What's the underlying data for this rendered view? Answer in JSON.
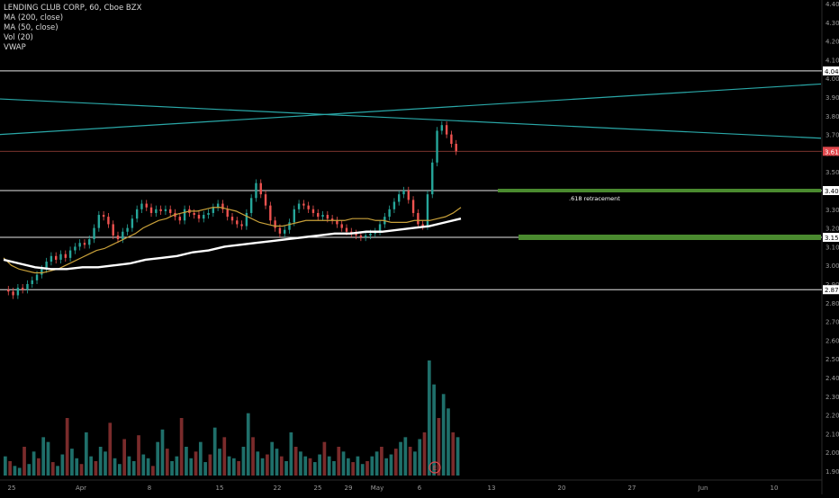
{
  "chart_data": {
    "type": "candlestick",
    "title": "LENDING CLUB CORP, 60, Cboe BZX",
    "indicators": [
      "MA (200, close)",
      "MA (50, close)",
      "Vol (20)",
      "VWAP"
    ],
    "y_axis": {
      "ticks": [
        "4.40",
        "4.30",
        "4.20",
        "4.10",
        "4.00",
        "3.90",
        "3.80",
        "3.70",
        "3.60",
        "3.50",
        "3.40",
        "3.30",
        "3.20",
        "3.10",
        "3.00",
        "2.90",
        "2.80",
        "2.70",
        "2.60",
        "2.50",
        "2.40",
        "2.30",
        "2.20",
        "2.10",
        "2.00",
        "1.90"
      ],
      "range": [
        1.9,
        4.4
      ]
    },
    "x_axis": {
      "ticks": [
        "25",
        "Apr",
        "8",
        "15",
        "22",
        "25",
        "29",
        "May",
        "6",
        "13",
        "20",
        "27",
        "Jun",
        "10"
      ]
    },
    "horizontal_levels": [
      {
        "price": 4.04,
        "label": "4.04"
      },
      {
        "price": 3.4,
        "label": "3.40"
      },
      {
        "price": 3.15,
        "label": "3.15"
      },
      {
        "price": 2.87,
        "label": "2.87"
      }
    ],
    "last_price": {
      "price": 3.61,
      "label": "3.61",
      "color": "#e0474c"
    },
    "trendlines": [
      {
        "from_price": 3.89,
        "to_price": 3.68,
        "color": "#2aa8a8"
      },
      {
        "from_price": 3.7,
        "to_price": 3.97,
        "color": "#2aa8a8"
      }
    ],
    "zones": [
      {
        "price": 3.4,
        "color": "#4a8a2f"
      },
      {
        "price": 3.15,
        "color": "#4a8a2f"
      }
    ],
    "annotation": ".618 retracement",
    "earnings_marker": "E",
    "price_series": [
      2.87,
      2.86,
      2.84,
      2.88,
      2.87,
      2.9,
      2.92,
      2.95,
      2.98,
      3.02,
      3.05,
      3.03,
      3.06,
      3.04,
      3.08,
      3.1,
      3.12,
      3.11,
      3.14,
      3.2,
      3.27,
      3.26,
      3.22,
      3.16,
      3.14,
      3.18,
      3.2,
      3.25,
      3.3,
      3.33,
      3.31,
      3.28,
      3.3,
      3.29,
      3.3,
      3.28,
      3.26,
      3.24,
      3.3,
      3.28,
      3.27,
      3.25,
      3.27,
      3.28,
      3.31,
      3.33,
      3.3,
      3.26,
      3.24,
      3.22,
      3.21,
      3.28,
      3.36,
      3.44,
      3.38,
      3.32,
      3.24,
      3.2,
      3.17,
      3.19,
      3.23,
      3.3,
      3.33,
      3.32,
      3.3,
      3.28,
      3.26,
      3.27,
      3.25,
      3.24,
      3.22,
      3.2,
      3.18,
      3.17,
      3.16,
      3.15,
      3.16,
      3.17,
      3.18,
      3.22,
      3.26,
      3.3,
      3.34,
      3.38,
      3.4,
      3.35,
      3.28,
      3.22,
      3.21,
      3.38,
      3.55,
      3.72,
      3.75,
      3.7,
      3.65,
      3.61
    ],
    "ma50_series": [
      3.04,
      3.0,
      2.98,
      2.97,
      2.96,
      2.96,
      2.97,
      2.98,
      3.0,
      3.02,
      3.04,
      3.06,
      3.08,
      3.09,
      3.11,
      3.13,
      3.15,
      3.17,
      3.2,
      3.22,
      3.24,
      3.25,
      3.27,
      3.28,
      3.29,
      3.29,
      3.3,
      3.31,
      3.31,
      3.3,
      3.29,
      3.27,
      3.25,
      3.23,
      3.22,
      3.21,
      3.21,
      3.22,
      3.23,
      3.24,
      3.24,
      3.24,
      3.24,
      3.24,
      3.24,
      3.25,
      3.25,
      3.25,
      3.24,
      3.24,
      3.23,
      3.23,
      3.23,
      3.24,
      3.24,
      3.24,
      3.25,
      3.26,
      3.28,
      3.31
    ],
    "ma200_series": [
      3.03,
      3.01,
      2.99,
      2.98,
      2.98,
      2.99,
      2.99,
      3.0,
      3.01,
      3.03,
      3.04,
      3.05,
      3.07,
      3.08,
      3.1,
      3.11,
      3.12,
      3.13,
      3.14,
      3.15,
      3.16,
      3.17,
      3.17,
      3.18,
      3.18,
      3.19,
      3.2,
      3.21,
      3.23,
      3.25
    ],
    "volume_series": [
      20,
      15,
      10,
      8,
      30,
      12,
      25,
      18,
      40,
      35,
      14,
      10,
      22,
      60,
      28,
      18,
      12,
      45,
      20,
      15,
      30,
      25,
      55,
      18,
      12,
      38,
      20,
      15,
      42,
      22,
      18,
      10,
      35,
      48,
      28,
      15,
      20,
      60,
      30,
      18,
      25,
      35,
      14,
      22,
      50,
      28,
      40,
      20,
      18,
      15,
      30,
      65,
      40,
      25,
      18,
      22,
      35,
      28,
      20,
      15,
      45,
      30,
      25,
      20,
      18,
      14,
      22,
      35,
      20,
      15,
      30,
      25,
      18,
      14,
      20,
      12,
      15,
      20,
      25,
      30,
      18,
      22,
      28,
      35,
      40,
      30,
      25,
      38,
      45,
      120,
      95,
      60,
      85,
      70,
      45,
      40
    ]
  }
}
